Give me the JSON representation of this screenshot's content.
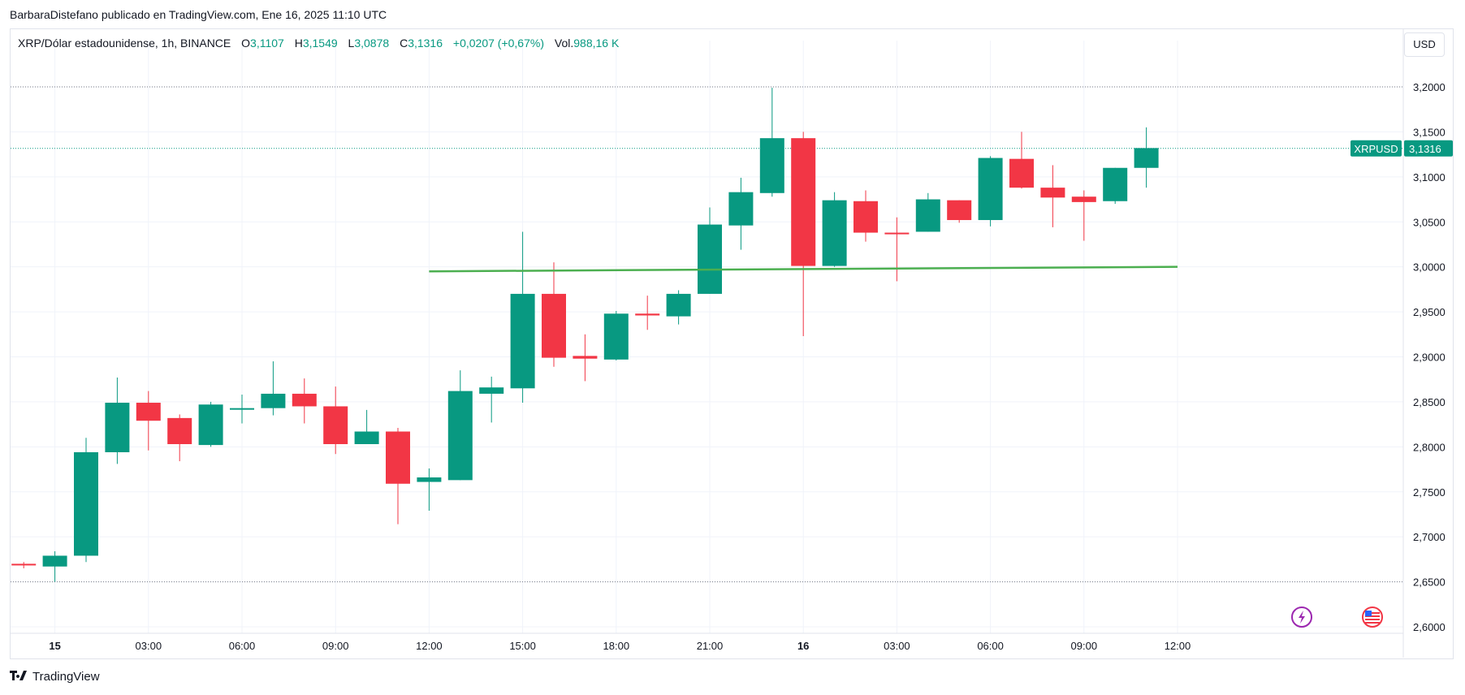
{
  "attribution": "BarbaraDistefano publicado en TradingView.com, Ene 16, 2025 11:10 UTC",
  "legend": {
    "symbol": "XRP/Dólar estadounidense, 1h, BINANCE",
    "open_label": "O",
    "open_value": "3,1107",
    "high_label": "H",
    "high_value": "3,1549",
    "low_label": "L",
    "low_value": "3,0878",
    "close_label": "C",
    "close_value": "3,1316",
    "change": "+0,0207 (+0,67%)",
    "volume_label": "Vol.",
    "volume_value": "988,16 K"
  },
  "currency_button": "USD",
  "brand": "TradingView",
  "icons": {
    "brand_logo": "tradingview-logo-icon",
    "flash": "lightning-icon",
    "flag": "us-flag-icon"
  },
  "colors": {
    "up": "#089981",
    "down": "#f23645",
    "support_line": "#4caf50",
    "grid": "#f0f3fa",
    "price_badge": "#089981"
  },
  "chart_data": {
    "type": "candlestick",
    "symbol": "XRPUSD",
    "last_price_label": "3,1316",
    "ylim": [
      2.59,
      3.24
    ],
    "y_ticks": [
      "2,6000",
      "2,6500",
      "2,7000",
      "2,7500",
      "2,8000",
      "2,8500",
      "2,9000",
      "2,9500",
      "3,0000",
      "3,0500",
      "3,1000",
      "3,1500",
      "3,2000"
    ],
    "x_ticks": [
      {
        "label": "15",
        "index": 1,
        "bold": true
      },
      {
        "label": "03:00",
        "index": 4
      },
      {
        "label": "06:00",
        "index": 7
      },
      {
        "label": "09:00",
        "index": 10
      },
      {
        "label": "12:00",
        "index": 13
      },
      {
        "label": "15:00",
        "index": 16
      },
      {
        "label": "18:00",
        "index": 19
      },
      {
        "label": "21:00",
        "index": 22
      },
      {
        "label": "16",
        "index": 25,
        "bold": true
      },
      {
        "label": "03:00",
        "index": 28
      },
      {
        "label": "06:00",
        "index": 31
      },
      {
        "label": "09:00",
        "index": 34
      },
      {
        "label": "12:00",
        "index": 37
      }
    ],
    "horizontal_dotted_levels": [
      3.2,
      3.1316,
      2.65
    ],
    "support_line": {
      "start_index": 13,
      "start_value": 2.995,
      "end_index": 37,
      "end_value": 3.0
    },
    "candles": [
      {
        "o": 2.67,
        "h": 2.672,
        "l": 2.665,
        "c": 2.669
      },
      {
        "o": 2.667,
        "h": 2.684,
        "l": 2.65,
        "c": 2.679
      },
      {
        "o": 2.679,
        "h": 2.81,
        "l": 2.672,
        "c": 2.794
      },
      {
        "o": 2.794,
        "h": 2.877,
        "l": 2.781,
        "c": 2.849
      },
      {
        "o": 2.849,
        "h": 2.862,
        "l": 2.796,
        "c": 2.829
      },
      {
        "o": 2.832,
        "h": 2.836,
        "l": 2.784,
        "c": 2.803
      },
      {
        "o": 2.802,
        "h": 2.85,
        "l": 2.8,
        "c": 2.847
      },
      {
        "o": 2.843,
        "h": 2.858,
        "l": 2.826,
        "c": 2.843
      },
      {
        "o": 2.843,
        "h": 2.895,
        "l": 2.835,
        "c": 2.859
      },
      {
        "o": 2.859,
        "h": 2.876,
        "l": 2.826,
        "c": 2.845
      },
      {
        "o": 2.845,
        "h": 2.867,
        "l": 2.792,
        "c": 2.803
      },
      {
        "o": 2.803,
        "h": 2.841,
        "l": 2.803,
        "c": 2.817
      },
      {
        "o": 2.817,
        "h": 2.821,
        "l": 2.714,
        "c": 2.759
      },
      {
        "o": 2.761,
        "h": 2.776,
        "l": 2.729,
        "c": 2.766
      },
      {
        "o": 2.763,
        "h": 2.885,
        "l": 2.763,
        "c": 2.862
      },
      {
        "o": 2.859,
        "h": 2.878,
        "l": 2.827,
        "c": 2.866
      },
      {
        "o": 2.865,
        "h": 3.039,
        "l": 2.849,
        "c": 2.97
      },
      {
        "o": 2.97,
        "h": 3.005,
        "l": 2.889,
        "c": 2.899
      },
      {
        "o": 2.901,
        "h": 2.925,
        "l": 2.873,
        "c": 2.898
      },
      {
        "o": 2.897,
        "h": 2.951,
        "l": 2.896,
        "c": 2.948
      },
      {
        "o": 2.948,
        "h": 2.968,
        "l": 2.93,
        "c": 2.946
      },
      {
        "o": 2.945,
        "h": 2.974,
        "l": 2.936,
        "c": 2.97
      },
      {
        "o": 2.97,
        "h": 3.066,
        "l": 2.97,
        "c": 3.047
      },
      {
        "o": 3.046,
        "h": 3.099,
        "l": 3.019,
        "c": 3.083
      },
      {
        "o": 3.082,
        "h": 3.199,
        "l": 3.078,
        "c": 3.143
      },
      {
        "o": 3.143,
        "h": 3.15,
        "l": 2.923,
        "c": 3.001
      },
      {
        "o": 3.001,
        "h": 3.083,
        "l": 3.0,
        "c": 3.074
      },
      {
        "o": 3.073,
        "h": 3.085,
        "l": 3.028,
        "c": 3.038
      },
      {
        "o": 3.038,
        "h": 3.055,
        "l": 2.984,
        "c": 3.037
      },
      {
        "o": 3.039,
        "h": 3.082,
        "l": 3.039,
        "c": 3.075
      },
      {
        "o": 3.074,
        "h": 3.074,
        "l": 3.049,
        "c": 3.052
      },
      {
        "o": 3.052,
        "h": 3.123,
        "l": 3.045,
        "c": 3.121
      },
      {
        "o": 3.12,
        "h": 3.15,
        "l": 3.087,
        "c": 3.088
      },
      {
        "o": 3.088,
        "h": 3.113,
        "l": 3.044,
        "c": 3.077
      },
      {
        "o": 3.078,
        "h": 3.085,
        "l": 3.029,
        "c": 3.072
      },
      {
        "o": 3.073,
        "h": 3.11,
        "l": 3.07,
        "c": 3.11
      },
      {
        "o": 3.11,
        "h": 3.155,
        "l": 3.088,
        "c": 3.132
      }
    ]
  }
}
